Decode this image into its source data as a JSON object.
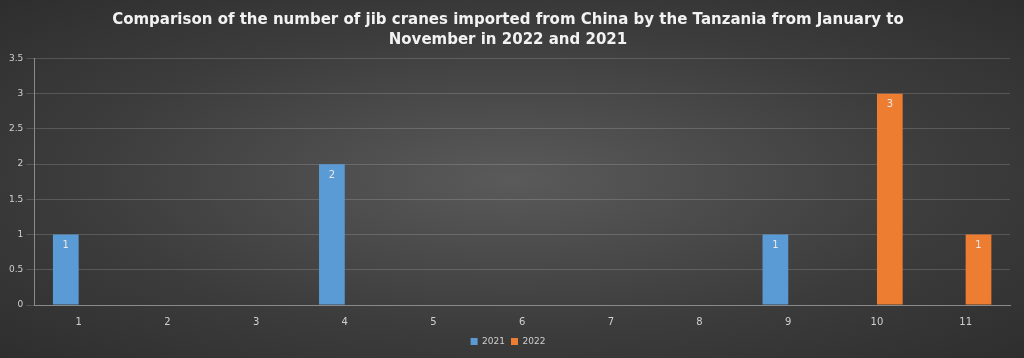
{
  "chart_data": {
    "type": "bar",
    "title": "Comparison of the number of jib cranes imported from China by the Tanzania from January to November in 2022 and 2021",
    "categories": [
      "1",
      "2",
      "3",
      "4",
      "5",
      "6",
      "7",
      "8",
      "9",
      "10",
      "11"
    ],
    "series": [
      {
        "name": "2021",
        "color": "#5b9bd5",
        "values": [
          1,
          null,
          null,
          2,
          null,
          null,
          null,
          null,
          1,
          null,
          null
        ]
      },
      {
        "name": "2022",
        "color": "#ed7d31",
        "values": [
          null,
          null,
          null,
          null,
          null,
          null,
          null,
          null,
          null,
          3,
          1
        ]
      }
    ],
    "ylim": [
      0,
      3.5
    ],
    "yticks": [
      0,
      0.5,
      1,
      1.5,
      2,
      2.5,
      3,
      3.5
    ],
    "grid": true,
    "legend": "bottom",
    "data_labels": true
  }
}
